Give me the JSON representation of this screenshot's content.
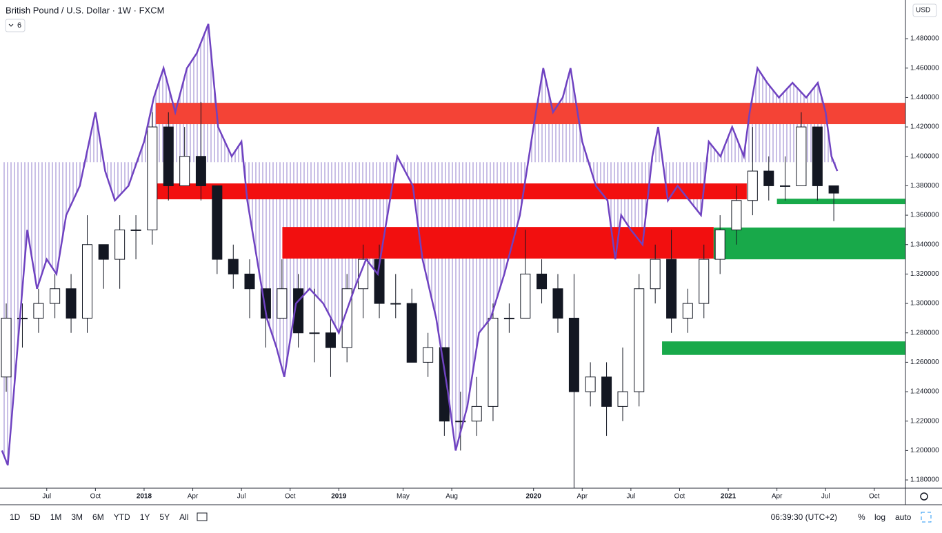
{
  "chart_data": {
    "type": "candlestick",
    "title": "British Pound / U.S. Dollar · 1W · FXCM",
    "x": [
      2017.292,
      2017.375,
      2017.458,
      2017.542,
      2017.625,
      2017.708,
      2017.792,
      2017.875,
      2017.958,
      2018.042,
      2018.125,
      2018.208,
      2018.292,
      2018.375,
      2018.458,
      2018.542,
      2018.625,
      2018.708,
      2018.792,
      2018.875,
      2018.958,
      2019.042,
      2019.125,
      2019.208,
      2019.292,
      2019.375,
      2019.458,
      2019.542,
      2019.625,
      2019.708,
      2019.792,
      2019.875,
      2019.958,
      2020.042,
      2020.125,
      2020.208,
      2020.292,
      2020.375,
      2020.458,
      2020.542,
      2020.625,
      2020.708,
      2020.792,
      2020.875,
      2020.958,
      2021.042,
      2021.125,
      2021.208,
      2021.292,
      2021.375,
      2021.458,
      2021.542
    ],
    "open": [
      1.25,
      1.29,
      1.29,
      1.3,
      1.31,
      1.29,
      1.34,
      1.33,
      1.35,
      1.35,
      1.42,
      1.38,
      1.4,
      1.38,
      1.33,
      1.32,
      1.31,
      1.29,
      1.31,
      1.28,
      1.28,
      1.27,
      1.31,
      1.33,
      1.3,
      1.3,
      1.26,
      1.27,
      1.22,
      1.22,
      1.23,
      1.29,
      1.29,
      1.32,
      1.31,
      1.29,
      1.24,
      1.25,
      1.23,
      1.24,
      1.31,
      1.33,
      1.29,
      1.3,
      1.33,
      1.35,
      1.37,
      1.39,
      1.38,
      1.38,
      1.42,
      1.38
    ],
    "high": [
      1.3,
      1.3,
      1.31,
      1.32,
      1.32,
      1.36,
      1.34,
      1.36,
      1.36,
      1.43,
      1.43,
      1.42,
      1.437,
      1.38,
      1.34,
      1.33,
      1.31,
      1.33,
      1.32,
      1.31,
      1.29,
      1.32,
      1.34,
      1.34,
      1.32,
      1.31,
      1.28,
      1.27,
      1.24,
      1.25,
      1.3,
      1.3,
      1.35,
      1.33,
      1.32,
      1.32,
      1.26,
      1.26,
      1.27,
      1.32,
      1.34,
      1.35,
      1.31,
      1.34,
      1.36,
      1.38,
      1.42,
      1.4,
      1.4,
      1.43,
      1.42,
      1.38
    ],
    "low": [
      1.24,
      1.27,
      1.28,
      1.29,
      1.28,
      1.28,
      1.31,
      1.31,
      1.33,
      1.34,
      1.37,
      1.38,
      1.37,
      1.32,
      1.31,
      1.29,
      1.27,
      1.29,
      1.27,
      1.26,
      1.25,
      1.26,
      1.29,
      1.29,
      1.29,
      1.26,
      1.25,
      1.21,
      1.2,
      1.21,
      1.22,
      1.28,
      1.29,
      1.3,
      1.28,
      1.14,
      1.23,
      1.21,
      1.22,
      1.23,
      1.3,
      1.28,
      1.28,
      1.29,
      1.32,
      1.34,
      1.36,
      1.37,
      1.37,
      1.38,
      1.37,
      1.356
    ],
    "close": [
      1.29,
      1.29,
      1.3,
      1.31,
      1.29,
      1.34,
      1.33,
      1.35,
      1.35,
      1.42,
      1.38,
      1.4,
      1.38,
      1.33,
      1.32,
      1.31,
      1.29,
      1.31,
      1.28,
      1.28,
      1.27,
      1.31,
      1.33,
      1.3,
      1.3,
      1.26,
      1.27,
      1.22,
      1.22,
      1.23,
      1.29,
      1.29,
      1.32,
      1.31,
      1.29,
      1.24,
      1.25,
      1.23,
      1.24,
      1.31,
      1.33,
      1.29,
      1.3,
      1.33,
      1.35,
      1.37,
      1.39,
      1.38,
      1.38,
      1.42,
      1.38,
      1.375
    ],
    "up_color": "#ffffff",
    "down_color": "#131722",
    "xlim": [
      2017.26,
      2021.91
    ],
    "ylim": [
      1.1744,
      1.5063
    ],
    "xticks": [
      {
        "value": 2017.5,
        "label": "Jul"
      },
      {
        "value": 2017.75,
        "label": "Oct"
      },
      2018,
      {
        "value": 2018.25,
        "label": "Apr"
      },
      {
        "value": 2018.5,
        "label": "Jul"
      },
      {
        "value": 2018.75,
        "label": "Oct"
      },
      2019,
      {
        "value": 2019.33,
        "label": "May"
      },
      {
        "value": 2019.58,
        "label": "Aug"
      },
      2020,
      {
        "value": 2020.25,
        "label": "Apr"
      },
      {
        "value": 2020.5,
        "label": "Jul"
      },
      {
        "value": 2020.75,
        "label": "Oct"
      },
      2021,
      {
        "value": 2021.25,
        "label": "Apr"
      },
      {
        "value": 2021.5,
        "label": "Jul"
      },
      {
        "value": 2021.75,
        "label": "Oct"
      }
    ],
    "yticks": [
      {
        "value": 1.18,
        "label": "1.180000"
      },
      {
        "value": 1.2,
        "label": "1.200000"
      },
      {
        "value": 1.22,
        "label": "1.220000"
      },
      {
        "value": 1.24,
        "label": "1.240000"
      },
      {
        "value": 1.26,
        "label": "1.260000"
      },
      {
        "value": 1.28,
        "label": "1.280000"
      },
      {
        "value": 1.3,
        "label": "1.300000"
      },
      {
        "value": 1.32,
        "label": "1.320000"
      },
      {
        "value": 1.34,
        "label": "1.340000"
      },
      {
        "value": 1.36,
        "label": "1.360000"
      },
      {
        "value": 1.38,
        "label": "1.380000"
      },
      {
        "value": 1.4,
        "label": "1.400000"
      },
      {
        "value": 1.42,
        "label": "1.420000"
      },
      {
        "value": 1.44,
        "label": "1.440000"
      },
      {
        "value": 1.46,
        "label": "1.460000"
      },
      {
        "value": 1.48,
        "label": "1.480000"
      }
    ],
    "overlay": {
      "color": "#6f42c1",
      "fill_base": 1.396,
      "x": [
        2017.27,
        2017.3,
        2017.35,
        2017.4,
        2017.45,
        2017.5,
        2017.55,
        2017.6,
        2017.67,
        2017.75,
        2017.8,
        2017.85,
        2017.92,
        2018.0,
        2018.05,
        2018.1,
        2018.16,
        2018.22,
        2018.27,
        2018.33,
        2018.38,
        2018.45,
        2018.5,
        2018.53,
        2018.58,
        2018.63,
        2018.68,
        2018.72,
        2018.78,
        2018.85,
        2018.92,
        2019.0,
        2019.08,
        2019.14,
        2019.2,
        2019.25,
        2019.3,
        2019.38,
        2019.43,
        2019.5,
        2019.56,
        2019.6,
        2019.66,
        2019.72,
        2019.78,
        2019.85,
        2019.93,
        2020.0,
        2020.05,
        2020.1,
        2020.15,
        2020.19,
        2020.25,
        2020.32,
        2020.38,
        2020.42,
        2020.45,
        2020.5,
        2020.56,
        2020.61,
        2020.64,
        2020.69,
        2020.74,
        2020.8,
        2020.86,
        2020.9,
        2020.96,
        2021.02,
        2021.08,
        2021.11,
        2021.15,
        2021.2,
        2021.26,
        2021.33,
        2021.4,
        2021.46,
        2021.5,
        2021.53,
        2021.56
      ],
      "values": [
        1.2,
        1.19,
        1.27,
        1.35,
        1.31,
        1.33,
        1.32,
        1.36,
        1.38,
        1.43,
        1.39,
        1.37,
        1.38,
        1.41,
        1.44,
        1.46,
        1.43,
        1.46,
        1.47,
        1.49,
        1.42,
        1.4,
        1.41,
        1.37,
        1.33,
        1.29,
        1.27,
        1.25,
        1.3,
        1.31,
        1.3,
        1.28,
        1.31,
        1.33,
        1.32,
        1.36,
        1.4,
        1.38,
        1.33,
        1.29,
        1.24,
        1.2,
        1.23,
        1.28,
        1.29,
        1.32,
        1.36,
        1.42,
        1.46,
        1.43,
        1.44,
        1.46,
        1.41,
        1.38,
        1.37,
        1.33,
        1.36,
        1.35,
        1.34,
        1.4,
        1.42,
        1.37,
        1.38,
        1.37,
        1.36,
        1.41,
        1.4,
        1.42,
        1.4,
        1.43,
        1.46,
        1.45,
        1.44,
        1.45,
        1.44,
        1.45,
        1.43,
        1.4,
        1.39
      ]
    },
    "zones": [
      {
        "lower": 1.4219,
        "upper": 1.4364,
        "start": 2018.06,
        "end": 2021.91,
        "color": "#f44336"
      },
      {
        "lower": 1.3708,
        "upper": 1.3816,
        "start": 2018.06,
        "end": 2021.095,
        "color": "#f20f0f"
      },
      {
        "lower": 1.3305,
        "upper": 1.352,
        "start": 2018.71,
        "end": 2020.925,
        "color": "#f20f0f"
      },
      {
        "lower": 1.3675,
        "upper": 1.3712,
        "start": 2021.25,
        "end": 2021.91,
        "color": "#18a94a"
      },
      {
        "lower": 1.33,
        "upper": 1.3516,
        "start": 2020.925,
        "end": 2021.91,
        "color": "#18a94a"
      },
      {
        "lower": 1.265,
        "upper": 1.2742,
        "start": 2020.66,
        "end": 2021.91,
        "color": "#18a94a"
      }
    ]
  },
  "ui": {
    "indicator_count": "6",
    "currency": "USD",
    "ranges": [
      "1D",
      "5D",
      "1M",
      "3M",
      "6M",
      "YTD",
      "1Y",
      "5Y",
      "All"
    ],
    "clock": "06:39:30 (UTC+2)",
    "options": [
      "%",
      "log",
      "auto"
    ]
  }
}
